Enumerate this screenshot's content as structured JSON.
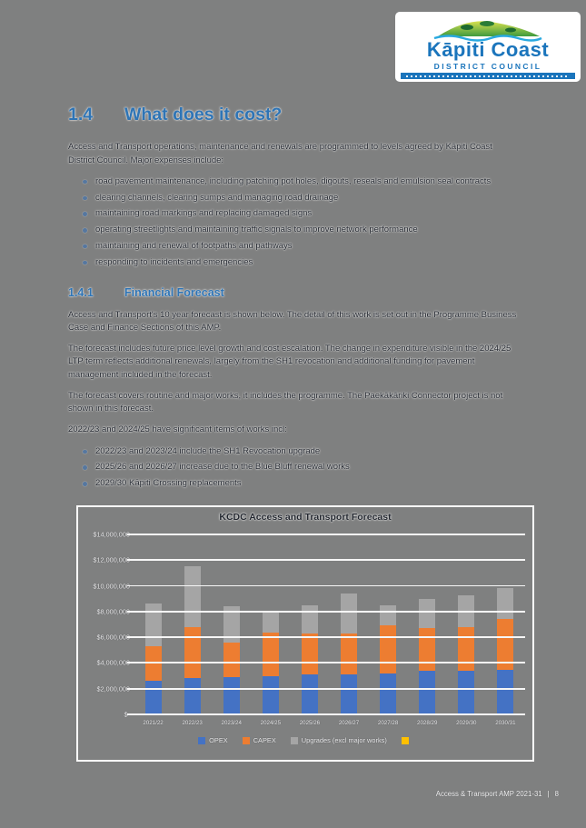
{
  "colors": {
    "page_bg": "#7f8080",
    "accent_heading": "#2e74b5",
    "logo_blue": "#1b75bc"
  },
  "logo": {
    "name": "Kāpiti Coast",
    "subtitle": "DISTRICT COUNCIL"
  },
  "section": {
    "heading_number": "1.4",
    "heading_title": "What does it cost?",
    "intro": "Access and Transport operations, maintenance and renewals are programmed to levels agreed by Kāpiti Coast District Council. Major expenses include:",
    "bullets": [
      "road pavement maintenance, including patching pot holes, digouts, reseals and emulsion seal contracts",
      "clearing channels, clearing sumps and managing road drainage",
      "maintaining road markings and replacing damaged signs",
      "operating streetlights and maintaining traffic signals to improve network performance",
      "maintaining and renewal of footpaths and pathways",
      "responding to incidents and emergencies"
    ]
  },
  "financial": {
    "heading_number": "1.4.1",
    "heading_title": "Financial Forecast",
    "paragraphs": [
      "Access and Transport's 10 year forecast is shown below. The detail of this work is set out in the Programme Business Case and Finance Sections of this AMP.",
      "The forecast includes future price level growth and cost escalation. The change in expenditure visible in the 2024/25 LTP term reflects additional renewals, largely from the SH1 revocation and additional funding for pavement management included in the forecast.",
      "The forecast covers routine and major works, it includes the programme. The Paekākāriki Connector project is not shown in this forecast."
    ],
    "works_intro": "2022/23 and 2024/25 have significant items of works incl:",
    "works_bullets": [
      "2022/23 and 2023/24 include the SH1 Revocation upgrade",
      "2025/26 and 2026/27 increase due to the Blue Bluff renewal works",
      "2029/30 Kāpiti Crossing replacements"
    ]
  },
  "chart_data": {
    "type": "bar",
    "stacked": true,
    "title": "KCDC Access and Transport Forecast",
    "unit": "NZD (millions)",
    "categories": [
      "2021/22",
      "2022/23",
      "2023/24",
      "2024/25",
      "2025/26",
      "2026/27",
      "2027/28",
      "2028/29",
      "2029/30",
      "2030/31"
    ],
    "series": [
      {
        "name": "OPEX",
        "color": "#4472c4",
        "values": [
          2.6,
          2.8,
          2.9,
          3.0,
          3.1,
          3.1,
          3.2,
          3.4,
          3.4,
          3.5
        ]
      },
      {
        "name": "CAPEX",
        "color": "#ed7d31",
        "values": [
          2.7,
          4.0,
          2.7,
          3.4,
          3.2,
          3.2,
          3.7,
          3.3,
          3.4,
          3.9
        ]
      },
      {
        "name": "Upgrades (excl major works)",
        "color": "#a5a5a5",
        "values": [
          3.3,
          4.7,
          2.8,
          1.5,
          2.2,
          3.1,
          1.6,
          2.3,
          2.5,
          2.4
        ]
      }
    ],
    "extra_legend": {
      "color": "#ffc000",
      "label": ""
    },
    "y_ticks": [
      "$14,000,000",
      "$12,000,000",
      "$10,000,000",
      "$8,000,000",
      "$6,000,000",
      "$4,000,000",
      "$2,000,000",
      "$-"
    ],
    "ylim_millions": [
      0,
      14
    ],
    "gridlines": true,
    "legend_position": "bottom"
  },
  "footer": {
    "doc_title": "Access & Transport AMP 2021-31",
    "separator": "|",
    "page_number": "8"
  }
}
